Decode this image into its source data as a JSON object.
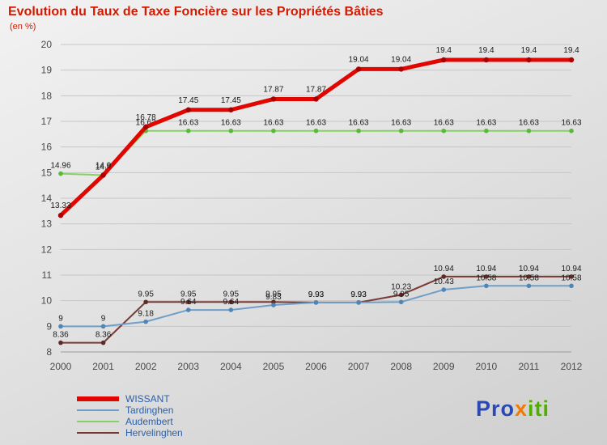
{
  "header": {
    "title": "Evolution du Taux de Taxe Foncière sur les Propriétés Bâties",
    "subtitle": "(en %)"
  },
  "chart_data": {
    "type": "line",
    "title": "Evolution du Taux de Taxe Foncière sur les Propriétés Bâties",
    "unit": "en %",
    "x": [
      2000,
      2001,
      2002,
      2003,
      2004,
      2005,
      2006,
      2007,
      2008,
      2009,
      2010,
      2011,
      2012
    ],
    "xlabel": "",
    "ylabel": "",
    "ylim": [
      8,
      20
    ],
    "yticks": [
      8,
      9,
      10,
      11,
      12,
      13,
      14,
      15,
      16,
      17,
      18,
      19,
      20
    ],
    "grid": true,
    "legend_position": "bottom-left",
    "series": [
      {
        "name": "WISSANT",
        "color": "#e10600",
        "marker_color": "#a80000",
        "line_width": 5,
        "values": [
          13.33,
          14.9,
          16.78,
          17.45,
          17.45,
          17.87,
          17.87,
          19.04,
          19.04,
          19.4,
          19.4,
          19.4,
          19.4
        ]
      },
      {
        "name": "Tardinghen",
        "color": "#6f9fc8",
        "marker_color": "#4d86b8",
        "line_width": 2,
        "values": [
          9,
          9,
          9.18,
          9.64,
          9.64,
          9.83,
          9.93,
          9.93,
          9.95,
          10.43,
          10.58,
          10.58,
          10.58
        ]
      },
      {
        "name": "Audembert",
        "color": "#86d164",
        "marker_color": "#5cb83a",
        "line_width": 2,
        "values": [
          14.96,
          14.9,
          16.63,
          16.63,
          16.63,
          16.63,
          16.63,
          16.63,
          16.63,
          16.63,
          16.63,
          16.63,
          16.63
        ]
      },
      {
        "name": "Hervelinghen",
        "color": "#7a3a34",
        "marker_color": "#5f2b26",
        "line_width": 2,
        "values": [
          8.36,
          8.36,
          9.95,
          9.95,
          9.95,
          9.95,
          9.93,
          9.93,
          10.23,
          10.94,
          10.94,
          10.94,
          10.94
        ]
      }
    ]
  },
  "logo": {
    "parts": [
      {
        "text": "Pro",
        "color": "#2b48b5"
      },
      {
        "text": "x",
        "color": "#f57900"
      },
      {
        "text": "iti",
        "color": "#4fae00"
      }
    ]
  },
  "colors": {
    "title": "#d41900",
    "axis_text": "#4a4a4a",
    "grid": "#c6c6c6",
    "axis_line": "#9a9a9a",
    "label_text": "#1c1c1c",
    "legend_text": "#2d5fa6"
  }
}
